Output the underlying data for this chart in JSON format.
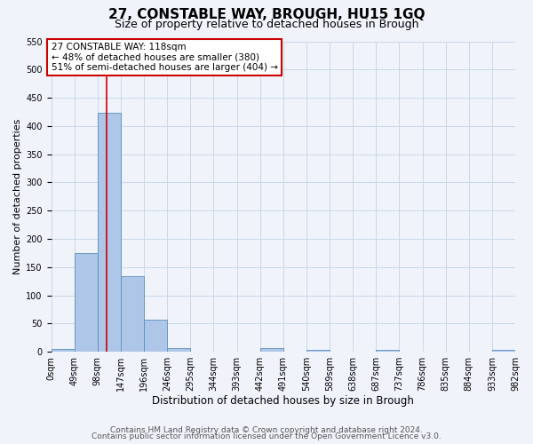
{
  "title": "27, CONSTABLE WAY, BROUGH, HU15 1GQ",
  "subtitle": "Size of property relative to detached houses in Brough",
  "xlabel": "Distribution of detached houses by size in Brough",
  "ylabel": "Number of detached properties",
  "footer_line1": "Contains HM Land Registry data © Crown copyright and database right 2024.",
  "footer_line2": "Contains public sector information licensed under the Open Government Licence v3.0.",
  "bin_edges": [
    0,
    49,
    98,
    147,
    196,
    245,
    294,
    343,
    392,
    441,
    490,
    539,
    588,
    637,
    686,
    735,
    784,
    833,
    882,
    931,
    980
  ],
  "bin_labels": [
    "0sqm",
    "49sqm",
    "98sqm",
    "147sqm",
    "196sqm",
    "246sqm",
    "295sqm",
    "344sqm",
    "393sqm",
    "442sqm",
    "491sqm",
    "540sqm",
    "589sqm",
    "638sqm",
    "687sqm",
    "737sqm",
    "786sqm",
    "835sqm",
    "884sqm",
    "933sqm",
    "982sqm"
  ],
  "bar_heights": [
    5,
    174,
    424,
    134,
    57,
    7,
    0,
    0,
    0,
    6,
    0,
    4,
    0,
    0,
    3,
    0,
    0,
    0,
    0,
    3
  ],
  "bar_color": "#aec6e8",
  "bar_edge_color": "#5a8fc0",
  "grid_color": "#c8d8e8",
  "background_color": "#f0f4fa",
  "vline_x": 118,
  "vline_color": "#cc0000",
  "annotation_title": "27 CONSTABLE WAY: 118sqm",
  "annotation_line1": "← 48% of detached houses are smaller (380)",
  "annotation_line2": "51% of semi-detached houses are larger (404) →",
  "annotation_box_color": "#cc0000",
  "ylim": [
    0,
    550
  ],
  "yticks": [
    0,
    50,
    100,
    150,
    200,
    250,
    300,
    350,
    400,
    450,
    500,
    550
  ],
  "title_fontsize": 11,
  "subtitle_fontsize": 9,
  "xlabel_fontsize": 8.5,
  "ylabel_fontsize": 8,
  "tick_fontsize": 7,
  "annotation_fontsize": 7.5,
  "footer_fontsize": 6.5
}
